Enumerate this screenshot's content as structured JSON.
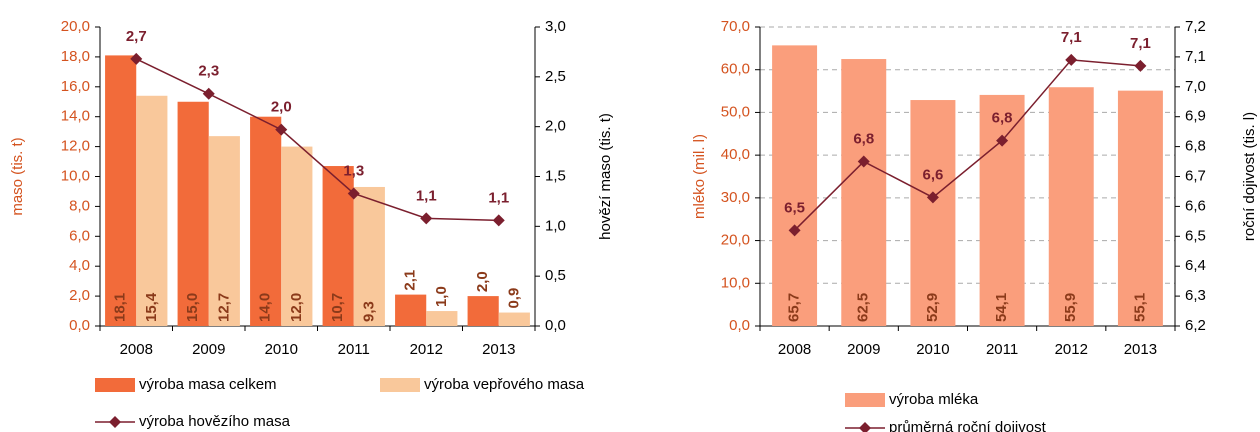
{
  "charts": [
    {
      "type": "bar",
      "categories": [
        "2008",
        "2009",
        "2010",
        "2011",
        "2012",
        "2013"
      ],
      "y_label": "maso (tis. t)",
      "y2_label": "hovězí maso (tis. t)",
      "ylim": [
        0,
        20
      ],
      "yticks": [
        {
          "value": 0,
          "label": "0,0"
        },
        {
          "value": 2,
          "label": "2,0"
        },
        {
          "value": 4,
          "label": "4,0"
        },
        {
          "value": 6,
          "label": "6,0"
        },
        {
          "value": 8,
          "label": "8,0"
        },
        {
          "value": 10,
          "label": "10,0"
        },
        {
          "value": 12,
          "label": "12,0"
        },
        {
          "value": 14,
          "label": "14,0"
        },
        {
          "value": 16,
          "label": "16,0"
        },
        {
          "value": 18,
          "label": "18,0"
        },
        {
          "value": 20,
          "label": "20,0"
        }
      ],
      "y2lim": [
        0,
        3
      ],
      "y2ticks": [
        {
          "value": 0,
          "label": "0,0"
        },
        {
          "value": 0.5,
          "label": "0,5"
        },
        {
          "value": 1,
          "label": "1,0"
        },
        {
          "value": 1.5,
          "label": "1,5"
        },
        {
          "value": 2,
          "label": "2,0"
        },
        {
          "value": 2.5,
          "label": "2,5"
        },
        {
          "value": 3,
          "label": "3,0"
        }
      ],
      "grid": false,
      "series": [
        {
          "name": "výroba masa celkem",
          "type": "bar",
          "color": "#f26b3a",
          "values": [
            18.1,
            15.0,
            14.0,
            10.7,
            2.1,
            2.0
          ],
          "value_labels": [
            "18,1",
            "15,0",
            "14,0",
            "10,7",
            "2,1",
            "2,0"
          ]
        },
        {
          "name": "výroba vepřového masa",
          "type": "bar",
          "color": "#f9c89b",
          "values": [
            15.4,
            12.7,
            12.0,
            9.3,
            1.0,
            0.9
          ],
          "value_labels": [
            "15,4",
            "12,7",
            "12,0",
            "9,3",
            "1,0",
            "0,9"
          ]
        },
        {
          "name": "výroba hovězího masa",
          "type": "line",
          "axis": "y2",
          "color": "#7b1f2e",
          "values": [
            2.68,
            2.33,
            1.97,
            1.33,
            1.08,
            1.06
          ],
          "value_labels": [
            "2,7",
            "2,3",
            "2,0",
            "1,3",
            "1,1",
            "1,1"
          ]
        }
      ]
    },
    {
      "type": "bar",
      "categories": [
        "2008",
        "2009",
        "2010",
        "2011",
        "2012",
        "2013"
      ],
      "y_label": "mléko (mil. l)",
      "y2_label": "roční dojivost (tis. l)",
      "ylim": [
        0,
        70
      ],
      "yticks": [
        {
          "value": 0,
          "label": "0,0"
        },
        {
          "value": 10,
          "label": "10,0"
        },
        {
          "value": 20,
          "label": "20,0"
        },
        {
          "value": 30,
          "label": "30,0"
        },
        {
          "value": 40,
          "label": "40,0"
        },
        {
          "value": 50,
          "label": "50,0"
        },
        {
          "value": 60,
          "label": "60,0"
        },
        {
          "value": 70,
          "label": "70,0"
        }
      ],
      "y2lim": [
        6.2,
        7.2
      ],
      "y2ticks": [
        {
          "value": 6.2,
          "label": "6,2"
        },
        {
          "value": 6.3,
          "label": "6,3"
        },
        {
          "value": 6.4,
          "label": "6,4"
        },
        {
          "value": 6.5,
          "label": "6,5"
        },
        {
          "value": 6.6,
          "label": "6,6"
        },
        {
          "value": 6.7,
          "label": "6,7"
        },
        {
          "value": 6.8,
          "label": "6,8"
        },
        {
          "value": 6.9,
          "label": "6,9"
        },
        {
          "value": 7.0,
          "label": "7,0"
        },
        {
          "value": 7.1,
          "label": "7,1"
        },
        {
          "value": 7.2,
          "label": "7,2"
        }
      ],
      "grid": true,
      "series": [
        {
          "name": "výroba mléka",
          "type": "bar",
          "color": "#fa9e7c",
          "values": [
            65.7,
            62.5,
            52.9,
            54.1,
            55.9,
            55.1
          ],
          "value_labels": [
            "65,7",
            "62,5",
            "52,9",
            "54,1",
            "55,9",
            "55,1"
          ]
        },
        {
          "name": "průměrná roční dojivost",
          "type": "line",
          "axis": "y2",
          "color": "#7b1f2e",
          "values": [
            6.52,
            6.75,
            6.63,
            6.82,
            7.09,
            7.07
          ],
          "value_labels": [
            "6,5",
            "6,8",
            "6,6",
            "6,8",
            "7,1",
            "7,1"
          ]
        }
      ]
    }
  ]
}
